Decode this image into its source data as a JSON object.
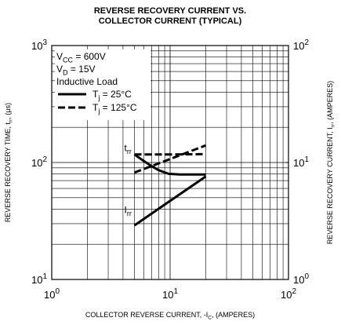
{
  "chart_data": {
    "type": "line",
    "title": [
      "REVERSE RECOVERY CURRENT VS.",
      "COLLECTOR CURRENT (TYPICAL)"
    ],
    "xlabel": {
      "text": "COLLECTOR REVERSE CURRENT, -I",
      "sub": "C",
      "rest": ", (AMPERES)"
    },
    "ylabel": {
      "text": "REVERSE RECOVERY TIME, t",
      "sub": "rr",
      "rest": ", (µs)"
    },
    "y2label": {
      "text": "REVERSE RECOVERY CURRENT, I",
      "sub": "rr",
      "rest": ", (AMPERES)"
    },
    "xlog": true,
    "ylog": true,
    "y2log": true,
    "grid": true,
    "minor_grid": true,
    "xlim": [
      1,
      100
    ],
    "xticks": [
      {
        "value": 1,
        "label": "10",
        "sup": "0"
      },
      {
        "value": 10,
        "label": "10",
        "sup": "1"
      },
      {
        "value": 100,
        "label": "10",
        "sup": "2"
      }
    ],
    "ylim": [
      10,
      1000
    ],
    "yticks": [
      {
        "value": 10,
        "label": "10",
        "sup": "1"
      },
      {
        "value": 100,
        "label": "10",
        "sup": "2"
      },
      {
        "value": 1000,
        "label": "10",
        "sup": "3"
      }
    ],
    "y2lim": [
      1,
      100
    ],
    "y2ticks": [
      {
        "value": 1,
        "label": "10",
        "sup": "0"
      },
      {
        "value": 10,
        "label": "10",
        "sup": "1"
      },
      {
        "value": 100,
        "label": "10",
        "sup": "2"
      }
    ],
    "conditions": [
      {
        "text": "V",
        "sub": "CC",
        "rest": " = 600V"
      },
      {
        "text": "V",
        "sub": "D",
        "rest": " = 15V"
      },
      {
        "text": "Inductive Load",
        "sub": "",
        "rest": ""
      }
    ],
    "legend_corner": "top-left",
    "annotations": [
      {
        "text": "t",
        "sub": "rr",
        "x": 4.4,
        "y": 125
      },
      {
        "text": "I",
        "sub": "rr",
        "x": 4.4,
        "y": 37
      }
    ],
    "series": [
      {
        "name": {
          "text": "T",
          "sub": "j",
          "rest": " = 25°C"
        },
        "color": "#000000",
        "dash": false,
        "curves": [
          {
            "axis": "y",
            "x": [
              5,
              6,
              7,
              8,
              9.7,
              12,
              15,
              20
            ],
            "values": [
              117,
              103,
              93,
              86,
              80,
              79,
              79,
              79
            ]
          },
          {
            "axis": "y2",
            "x": [
              5,
              10,
              20
            ],
            "values": [
              2.9,
              4.7,
              7.6
            ]
          }
        ]
      },
      {
        "name": {
          "text": "T",
          "sub": "j",
          "rest": " = 125°C"
        },
        "color": "#000000",
        "dash": true,
        "curves": [
          {
            "axis": "y",
            "x": [
              5,
              10,
              20
            ],
            "values": [
              117,
              117,
              118
            ]
          },
          {
            "axis": "y2",
            "x": [
              5,
              10,
              20
            ],
            "values": [
              8.2,
              10.7,
              14
            ]
          }
        ]
      }
    ]
  }
}
